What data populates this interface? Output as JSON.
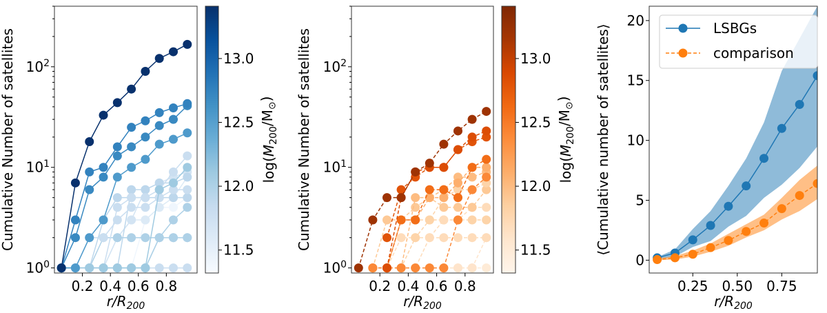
{
  "chart_data": [
    {
      "type": "line",
      "yscale": "log",
      "xlabel": "r/R_200",
      "ylabel": "Cumulative Number of satellites",
      "xlim": [
        0,
        1.02
      ],
      "ylim": [
        0.89,
        400
      ],
      "xticks": [
        0.2,
        0.4,
        0.6,
        0.8
      ],
      "xtick_labels": [
        "0.2",
        "0.4",
        "0.6",
        "0.8"
      ],
      "yticks": [
        1,
        10,
        100
      ],
      "ytick_labels": [
        "10^0",
        "10^1",
        "10^2"
      ],
      "x": [
        0.05,
        0.15,
        0.25,
        0.35,
        0.45,
        0.55,
        0.65,
        0.75,
        0.85,
        0.95
      ],
      "colormap": "Blues",
      "line_style": "solid",
      "colorbar": {
        "label": "log(M_200/M_⊙)",
        "range": [
          11.32,
          13.41
        ],
        "ticks": [
          11.5,
          12.0,
          12.5,
          13.0
        ],
        "tick_labels": [
          "11.5",
          "12.0",
          "12.5",
          "13.0"
        ]
      },
      "series": [
        {
          "mass": 11.8,
          "values": [
            1,
            1,
            1,
            1,
            1,
            1,
            1,
            1,
            1,
            1
          ]
        },
        {
          "mass": 11.4,
          "values": [
            1,
            1,
            1,
            1,
            1,
            1,
            3,
            4,
            4,
            5
          ]
        },
        {
          "mass": 12.0,
          "values": [
            1,
            1,
            1,
            1,
            1,
            1,
            1,
            2,
            2,
            2
          ]
        },
        {
          "mass": 11.6,
          "values": [
            1,
            1,
            1,
            1,
            2,
            3,
            3,
            4,
            5,
            8
          ]
        },
        {
          "mass": 11.7,
          "values": [
            1,
            1,
            1,
            1,
            2,
            3,
            6,
            7,
            8,
            9
          ]
        },
        {
          "mass": 11.9,
          "values": [
            1,
            1,
            1,
            1,
            1,
            6,
            6,
            7,
            7,
            8
          ]
        },
        {
          "mass": 12.0,
          "values": [
            1,
            1,
            1,
            2,
            2,
            2,
            2,
            2,
            2,
            2
          ]
        },
        {
          "mass": 11.9,
          "values": [
            1,
            1,
            1,
            3,
            5,
            5,
            5,
            5,
            5,
            5
          ]
        },
        {
          "mass": 11.8,
          "values": [
            1,
            1,
            2,
            2,
            3,
            4,
            4,
            5,
            6,
            6
          ]
        },
        {
          "mass": 12.0,
          "values": [
            1,
            1,
            1,
            1,
            1,
            1,
            1,
            2,
            3,
            4
          ]
        },
        {
          "mass": 11.8,
          "values": [
            1,
            1,
            1,
            1,
            4,
            5,
            5,
            6,
            9,
            13
          ]
        },
        {
          "mass": 12.1,
          "values": [
            1,
            1,
            1,
            1,
            1,
            1,
            1,
            6,
            7,
            10
          ]
        },
        {
          "mass": 12.55,
          "values": [
            1,
            1,
            2,
            3,
            8,
            10,
            12,
            17,
            19,
            22
          ]
        },
        {
          "mass": 12.7,
          "values": [
            1,
            2,
            6,
            8,
            13,
            16,
            20,
            26,
            30,
            41
          ]
        },
        {
          "mass": 12.75,
          "values": [
            1,
            3,
            9,
            10,
            16,
            25,
            29,
            35,
            39,
            43
          ]
        },
        {
          "mass": 13.4,
          "values": [
            1,
            7,
            18,
            33,
            44,
            60,
            90,
            121,
            141,
            167
          ]
        }
      ]
    },
    {
      "type": "line",
      "yscale": "log",
      "xlabel": "r/R_200",
      "ylabel": "Cumulative Number of satellites",
      "xlim": [
        0,
        1.0
      ],
      "ylim": [
        0.89,
        400
      ],
      "xticks": [
        0.2,
        0.4,
        0.6,
        0.8
      ],
      "xtick_labels": [
        "0.2",
        "0.4",
        "0.6",
        "0.8"
      ],
      "yticks": [
        1,
        10,
        100
      ],
      "ytick_labels": [
        "10^0",
        "10^1",
        "10^2"
      ],
      "x": [
        0.05,
        0.15,
        0.25,
        0.35,
        0.45,
        0.55,
        0.65,
        0.75,
        0.85,
        0.95
      ],
      "colormap": "Oranges",
      "line_style": "dashed",
      "colorbar": {
        "label": "log(M_200/M_⊙)",
        "range": [
          11.32,
          13.41
        ],
        "ticks": [
          11.5,
          12.0,
          12.5,
          13.0
        ],
        "tick_labels": [
          "11.5",
          "12.0",
          "12.5",
          "13.0"
        ]
      },
      "series": [
        {
          "mass": 11.5,
          "values": [
            null,
            1,
            1,
            1,
            1,
            1,
            1,
            1,
            1,
            1
          ]
        },
        {
          "mass": 11.6,
          "values": [
            null,
            1,
            1,
            1,
            1,
            1,
            1,
            1,
            1,
            2
          ]
        },
        {
          "mass": 11.7,
          "values": [
            null,
            1,
            1,
            2,
            2,
            2,
            2,
            2,
            2,
            2
          ]
        },
        {
          "mass": 11.8,
          "values": [
            null,
            1,
            1,
            1,
            2,
            3,
            3,
            3,
            3,
            3
          ]
        },
        {
          "mass": 11.7,
          "values": [
            null,
            1,
            1,
            1,
            1,
            2,
            3,
            3,
            4,
            4
          ]
        },
        {
          "mass": 11.9,
          "values": [
            null,
            1,
            3,
            3,
            4,
            5,
            4,
            4,
            4,
            6
          ]
        },
        {
          "mass": 11.8,
          "values": [
            null,
            1,
            1,
            3,
            3,
            3,
            5,
            6,
            6,
            7
          ]
        },
        {
          "mass": 12.0,
          "values": [
            null,
            1,
            1,
            1,
            5,
            5,
            6,
            8,
            8,
            9
          ]
        },
        {
          "mass": 12.1,
          "values": [
            null,
            1,
            1,
            3,
            3,
            5,
            5,
            7,
            10,
            10
          ]
        },
        {
          "mass": 12.4,
          "values": [
            null,
            1,
            1,
            1,
            1,
            1,
            1,
            3,
            6,
            8
          ]
        },
        {
          "mass": 12.6,
          "values": [
            null,
            null,
            1,
            3,
            3,
            6,
            6,
            5,
            10,
            12
          ]
        },
        {
          "mass": 12.8,
          "values": [
            null,
            null,
            2,
            6,
            8,
            10,
            10,
            15,
            18,
            20
          ]
        },
        {
          "mass": 12.85,
          "values": [
            null,
            null,
            1,
            5,
            9,
            10,
            10,
            15,
            20,
            23
          ]
        },
        {
          "mass": 13.2,
          "values": [
            1,
            3,
            5,
            5,
            9,
            11,
            17,
            23,
            30,
            36
          ]
        }
      ]
    },
    {
      "type": "line",
      "yscale": "linear",
      "xlabel": "r/R_200",
      "ylabel": "⟨Cumulative number of satellites⟩",
      "xlim": [
        0.005,
        0.95
      ],
      "ylim": [
        -1.07,
        21.2
      ],
      "xticks": [
        0.25,
        0.5,
        0.75
      ],
      "xtick_labels": [
        "0.25",
        "0.50",
        "0.75"
      ],
      "yticks": [
        0,
        5,
        10,
        15,
        20
      ],
      "ytick_labels": [
        "0",
        "5",
        "10",
        "15",
        "20"
      ],
      "x": [
        0.05,
        0.15,
        0.25,
        0.35,
        0.45,
        0.55,
        0.65,
        0.75,
        0.85,
        0.95
      ],
      "legend": "top-left",
      "series": [
        {
          "name": "LSBGs",
          "color": "#1f77b4",
          "line_style": "solid",
          "values": [
            0.2,
            0.6,
            1.7,
            2.9,
            4.5,
            6.2,
            8.5,
            11.0,
            13.0,
            15.4
          ],
          "band_upper": [
            0.25,
            0.9,
            2.6,
            4.1,
            6.2,
            8.5,
            11.5,
            15.8,
            18.5,
            21.2
          ],
          "band_lower": [
            0.1,
            0.3,
            1.1,
            1.6,
            2.8,
            3.7,
            5.2,
            6.3,
            7.7,
            9.5
          ]
        },
        {
          "name": "comparison",
          "color": "#ff7f0e",
          "line_style": "dashed",
          "values": [
            0.05,
            0.2,
            0.5,
            1.05,
            1.65,
            2.4,
            3.1,
            4.3,
            5.4,
            6.4
          ],
          "band_upper": [
            0.15,
            0.35,
            0.8,
            1.4,
            2.2,
            3.0,
            3.8,
            5.2,
            6.7,
            7.9
          ],
          "band_lower": [
            0.0,
            0.05,
            0.3,
            0.7,
            1.2,
            1.9,
            2.5,
            3.4,
            4.1,
            5.1
          ]
        }
      ]
    }
  ]
}
